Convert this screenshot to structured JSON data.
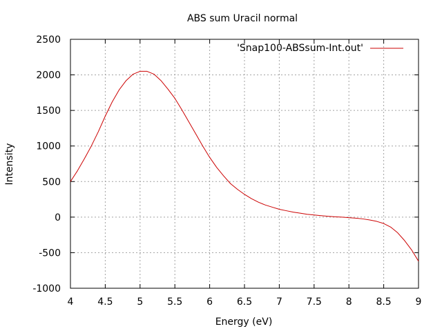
{
  "chart_data": {
    "type": "line",
    "title": "ABS sum Uracil normal",
    "xlabel": "Energy (eV)",
    "ylabel": "Intensity",
    "xlim": [
      4,
      9
    ],
    "ylim": [
      -1000,
      2500
    ],
    "xticks": [
      "4",
      "4.5",
      "5",
      "5.5",
      "6",
      "6.5",
      "7",
      "7.5",
      "8",
      "8.5",
      "9"
    ],
    "yticks": [
      "-1000",
      "-500",
      "0",
      "500",
      "1000",
      "1500",
      "2000",
      "2500"
    ],
    "grid": true,
    "legend_position": "top-right",
    "series": [
      {
        "name": "'Snap100-ABSsum-Int.out'",
        "color": "#cc0000",
        "x": [
          4.0,
          4.1,
          4.2,
          4.3,
          4.4,
          4.5,
          4.6,
          4.7,
          4.8,
          4.9,
          5.0,
          5.1,
          5.2,
          5.3,
          5.4,
          5.5,
          5.6,
          5.7,
          5.8,
          5.9,
          6.0,
          6.1,
          6.2,
          6.3,
          6.4,
          6.5,
          6.6,
          6.7,
          6.8,
          6.9,
          7.0,
          7.1,
          7.2,
          7.3,
          7.4,
          7.5,
          7.6,
          7.7,
          7.8,
          7.9,
          8.0,
          8.1,
          8.2,
          8.3,
          8.4,
          8.5,
          8.6,
          8.7,
          8.8,
          8.9,
          9.0
        ],
        "y": [
          500,
          650,
          820,
          1000,
          1200,
          1420,
          1620,
          1790,
          1920,
          2010,
          2050,
          2050,
          2010,
          1920,
          1800,
          1670,
          1510,
          1340,
          1170,
          1000,
          840,
          700,
          580,
          470,
          390,
          320,
          260,
          210,
          170,
          140,
          110,
          90,
          70,
          55,
          40,
          30,
          20,
          12,
          5,
          0,
          -8,
          -15,
          -25,
          -40,
          -60,
          -90,
          -140,
          -220,
          -330,
          -460,
          -620
        ]
      }
    ]
  }
}
